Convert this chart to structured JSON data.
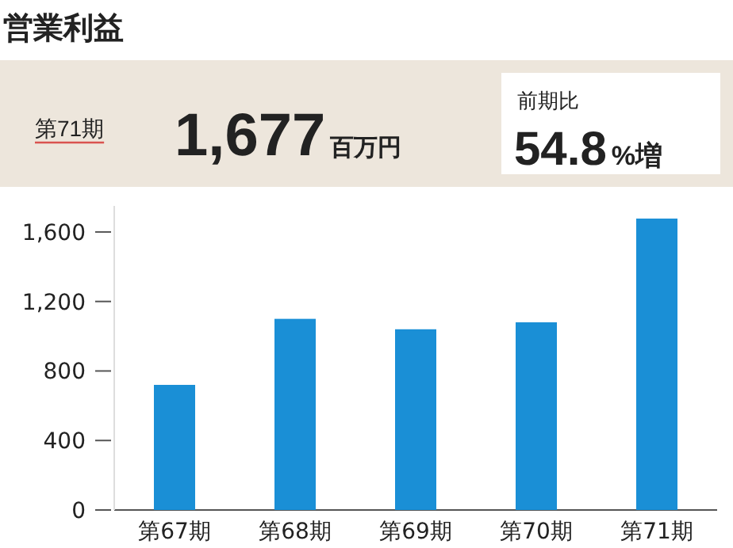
{
  "chart_data": {
    "type": "bar",
    "title": "営業利益",
    "categories": [
      "第67期",
      "第68期",
      "第69期",
      "第70期",
      "第71期"
    ],
    "values": [
      720,
      1100,
      1040,
      1080,
      1677
    ],
    "color": "#1a8fd6",
    "ylim": [
      0,
      1750
    ],
    "yticks": [
      0,
      400,
      800,
      {
        "value": 1200,
        "label": "1,200"
      },
      {
        "value": 1600,
        "label": "1,600"
      }
    ],
    "grid": false,
    "annotations": [
      "第71期",
      "1,677",
      "百万円",
      "前期比",
      "54.8",
      "%増"
    ]
  }
}
